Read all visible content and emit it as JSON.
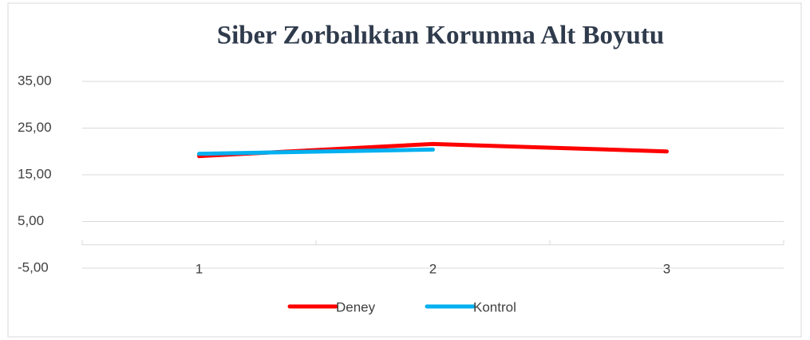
{
  "chart_data": {
    "type": "line",
    "title": "Siber Zorbalıktan Korunma Alt Boyutu",
    "categories": [
      "1",
      "2",
      "3"
    ],
    "series": [
      {
        "name": "Deney",
        "color": "#ff0000",
        "values": [
          19.0,
          21.6,
          20.0
        ]
      },
      {
        "name": "Kontrol",
        "color": "#00b0f0",
        "values": [
          19.5,
          20.4,
          null
        ]
      }
    ],
    "ylim": [
      -5,
      35
    ],
    "yticks": [
      {
        "value": -5,
        "label": "-5,00"
      },
      {
        "value": 5,
        "label": "5,00"
      },
      {
        "value": 15,
        "label": "15,00"
      },
      {
        "value": 25,
        "label": "25,00"
      },
      {
        "value": 35,
        "label": "35,00"
      }
    ],
    "grid": true,
    "legend": "bottom"
  }
}
